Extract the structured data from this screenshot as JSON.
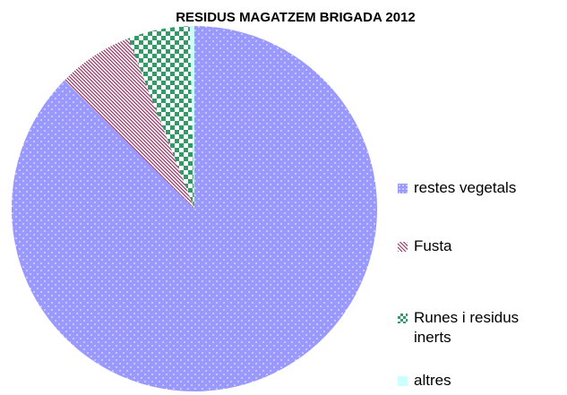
{
  "chart_data": {
    "type": "pie",
    "title": "RESIDUS MAGATZEM BRIGADA 2012",
    "categories": [
      "restes vegetals",
      "Fusta",
      "Runes i residus inerts",
      "altres"
    ],
    "values": [
      87.4,
      6.7,
      5.5,
      0.4
    ],
    "colors": [
      "#9999ff",
      "#993366",
      "#339966",
      "#ccffff"
    ],
    "legend": "right"
  }
}
